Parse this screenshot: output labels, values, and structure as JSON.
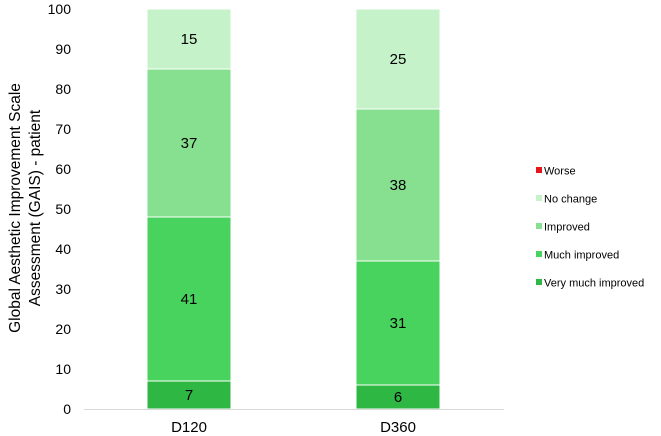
{
  "chart_data": {
    "type": "bar",
    "stacked": true,
    "categories": [
      "D120",
      "D360"
    ],
    "series": [
      {
        "name": "Very much improved",
        "values": [
          7,
          6
        ],
        "color": "#2fb744"
      },
      {
        "name": "Much improved",
        "values": [
          41,
          31
        ],
        "color": "#48d25e"
      },
      {
        "name": "Improved",
        "values": [
          37,
          38
        ],
        "color": "#86e08f"
      },
      {
        "name": "No change",
        "values": [
          15,
          25
        ],
        "color": "#c6f2c9"
      },
      {
        "name": "Worse",
        "values": [
          0,
          0
        ],
        "color": "#e8141c"
      }
    ],
    "ylabel_lines": [
      "Global Aesthetic Improvement Scale",
      "Assessment (GAIS) - patient"
    ],
    "ylim": [
      0,
      100
    ],
    "yticks": [
      0,
      10,
      20,
      30,
      40,
      50,
      60,
      70,
      80,
      90,
      100
    ],
    "legend_position": "right",
    "legend_order": [
      "Worse",
      "No change",
      "Improved",
      "Much improved",
      "Very much improved"
    ],
    "grid": false
  }
}
